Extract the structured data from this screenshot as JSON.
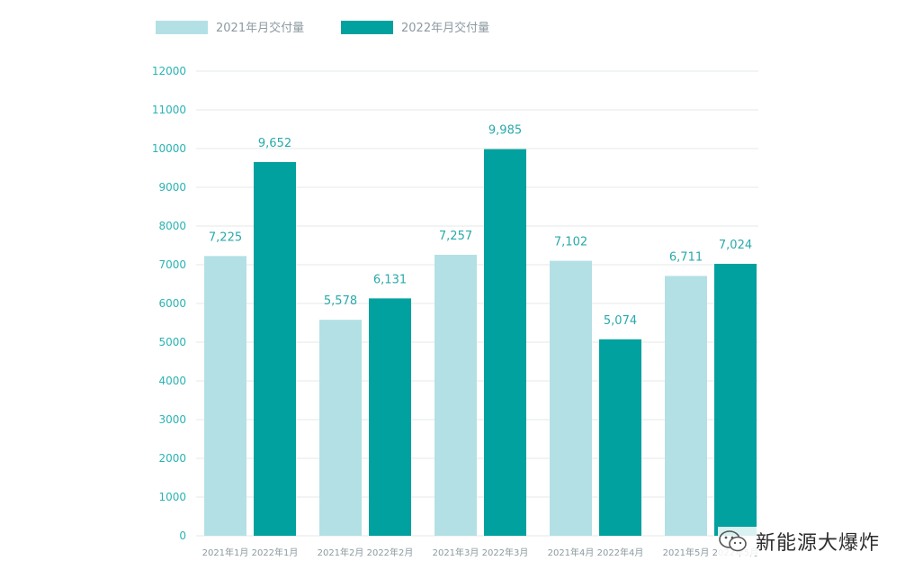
{
  "chart_data": {
    "type": "bar",
    "categories": [
      "1月",
      "2月",
      "3月",
      "4月",
      "5月"
    ],
    "x_tick_labels": [
      [
        "2021年1月",
        "2022年1月"
      ],
      [
        "2021年2月",
        "2022年2月"
      ],
      [
        "2021年3月",
        "2022年3月"
      ],
      [
        "2021年4月",
        "2022年4月"
      ],
      [
        "2021年5月",
        "2022年5月"
      ]
    ],
    "series": [
      {
        "name": "2021年月交付量",
        "color": "#b3e0e5",
        "values": [
          7225,
          5578,
          7257,
          7102,
          6711
        ],
        "labels": [
          "7,225",
          "5,578",
          "7,257",
          "7,102",
          "6,711"
        ]
      },
      {
        "name": "2022年月交付量",
        "color": "#00a19e",
        "values": [
          9652,
          6131,
          9985,
          5074,
          7024
        ],
        "labels": [
          "9,652",
          "6,131",
          "9,985",
          "5,074",
          "7,024"
        ]
      }
    ],
    "ylim": [
      0,
      12000
    ],
    "yticks": [
      0,
      1000,
      2000,
      3000,
      4000,
      5000,
      6000,
      7000,
      8000,
      9000,
      10000,
      11000,
      12000
    ],
    "grid": true,
    "legend_position": "top-left",
    "title": "",
    "xlabel": "",
    "ylabel": ""
  },
  "watermark": {
    "text": "新能源大爆炸",
    "icon": "wechat-icon"
  }
}
